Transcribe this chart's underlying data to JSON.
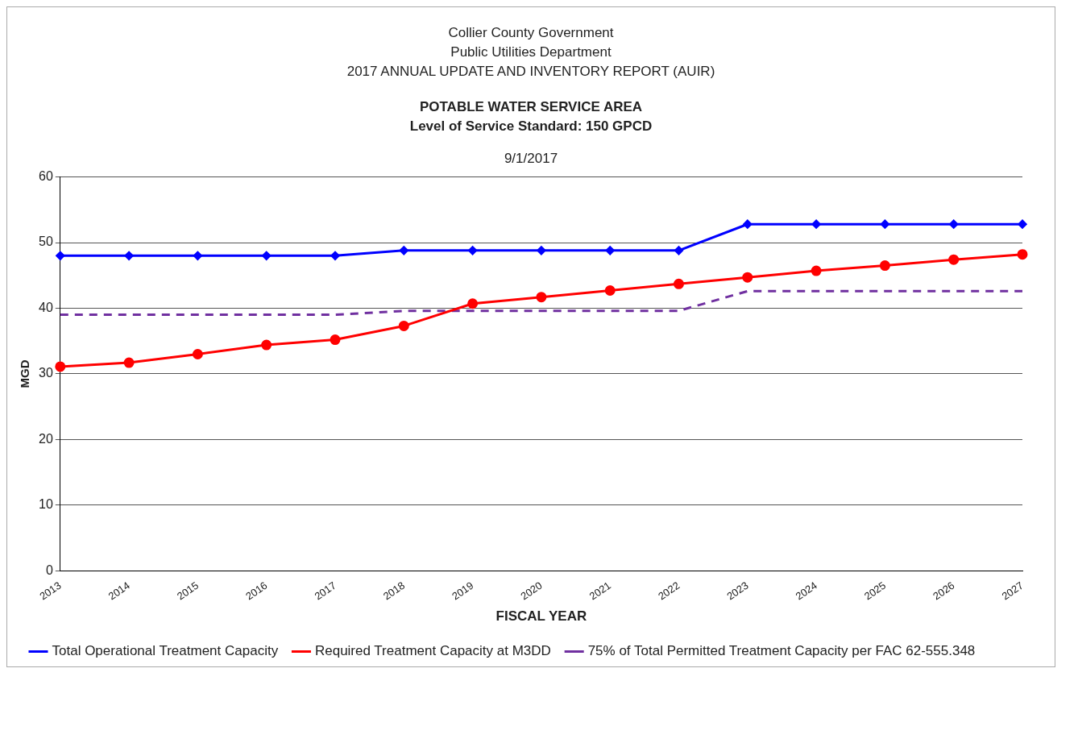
{
  "chart_data": {
    "type": "line",
    "title": "Collier County Government\nPublic Utilities Department\n2017 ANNUAL UPDATE AND INVENTORY REPORT (AUIR)",
    "subtitle": "POTABLE WATER SERVICE AREA\nLevel of Service Standard: 150 GPCD",
    "annotations": [
      "9/1/2017"
    ],
    "xlabel": "FISCAL YEAR",
    "ylabel": "MGD",
    "categories": [
      "2013",
      "2014",
      "2015",
      "2016",
      "2017",
      "2018",
      "2019",
      "2020",
      "2021",
      "2022",
      "2023",
      "2024",
      "2025",
      "2026",
      "2027"
    ],
    "series": [
      {
        "name": "Total Operational Treatment Capacity",
        "color": "#0000ff",
        "marker": "diamond",
        "line_style": "solid",
        "values": [
          48.0,
          48.0,
          48.0,
          48.0,
          48.0,
          48.8,
          48.8,
          48.8,
          48.8,
          48.8,
          52.8,
          52.8,
          52.8,
          52.8,
          52.8
        ]
      },
      {
        "name": "Required Treatment Capacity at M3DD",
        "color": "#ff0000",
        "marker": "circle",
        "line_style": "solid",
        "values": [
          31.1,
          31.7,
          33.0,
          34.4,
          35.2,
          37.3,
          40.7,
          41.7,
          42.7,
          43.7,
          44.7,
          45.7,
          46.5,
          47.4,
          48.2
        ]
      },
      {
        "name": "75% of Total Permitted Treatment Capacity per FAC 62-555.348",
        "color": "#7030a0",
        "marker": "none",
        "line_style": "dashed",
        "values": [
          39.0,
          39.0,
          39.0,
          39.0,
          39.0,
          39.6,
          39.6,
          39.6,
          39.6,
          39.6,
          42.6,
          42.6,
          42.6,
          42.6,
          42.6
        ]
      }
    ],
    "ylim": [
      0,
      60
    ],
    "yticks": [
      0,
      10,
      20,
      30,
      40,
      50,
      60
    ],
    "grid": "y",
    "legend": "bottom"
  }
}
